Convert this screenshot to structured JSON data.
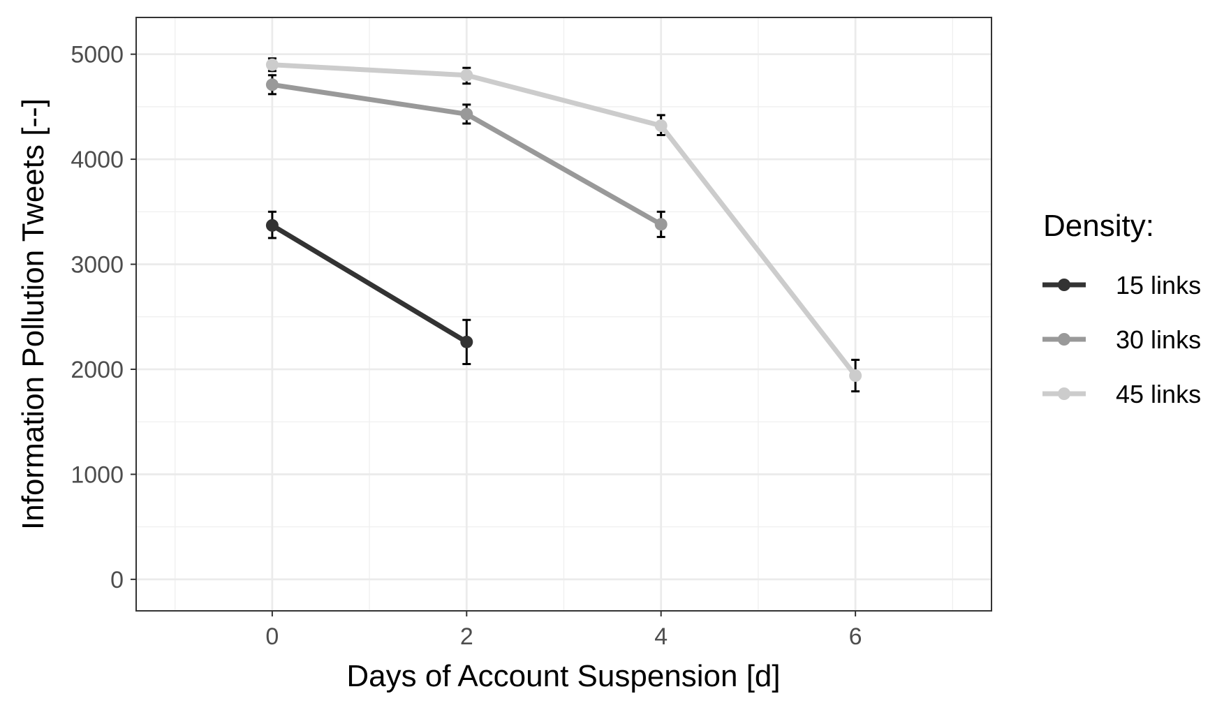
{
  "chart_data": {
    "type": "line",
    "title": "",
    "xlabel": "Days of Account Suspension [d]",
    "ylabel": "Information Pollution Tweets [--]",
    "xlim": [
      -1.4,
      7.4
    ],
    "ylim": [
      -300,
      5350
    ],
    "x_ticks": [
      0,
      2,
      4,
      6
    ],
    "y_ticks": [
      0,
      1000,
      2000,
      3000,
      4000,
      5000
    ],
    "grid": true,
    "legend": {
      "title": "Density:",
      "placement": "right"
    },
    "series": [
      {
        "name": "15 links",
        "color": "#333333",
        "points": [
          {
            "x": 0,
            "y": 3370,
            "err_low": 3250,
            "err_high": 3500
          },
          {
            "x": 2,
            "y": 2260,
            "err_low": 2050,
            "err_high": 2470
          }
        ]
      },
      {
        "name": "30 links",
        "color": "#999999",
        "points": [
          {
            "x": 0,
            "y": 4710,
            "err_low": 4620,
            "err_high": 4800
          },
          {
            "x": 2,
            "y": 4430,
            "err_low": 4340,
            "err_high": 4520
          },
          {
            "x": 4,
            "y": 3380,
            "err_low": 3260,
            "err_high": 3500
          }
        ]
      },
      {
        "name": "45 links",
        "color": "#cccccc",
        "points": [
          {
            "x": 0,
            "y": 4900,
            "err_low": 4840,
            "err_high": 4960
          },
          {
            "x": 2,
            "y": 4800,
            "err_low": 4720,
            "err_high": 4870
          },
          {
            "x": 4,
            "y": 4320,
            "err_low": 4230,
            "err_high": 4420
          },
          {
            "x": 6,
            "y": 1940,
            "err_low": 1790,
            "err_high": 2090
          }
        ]
      }
    ]
  }
}
